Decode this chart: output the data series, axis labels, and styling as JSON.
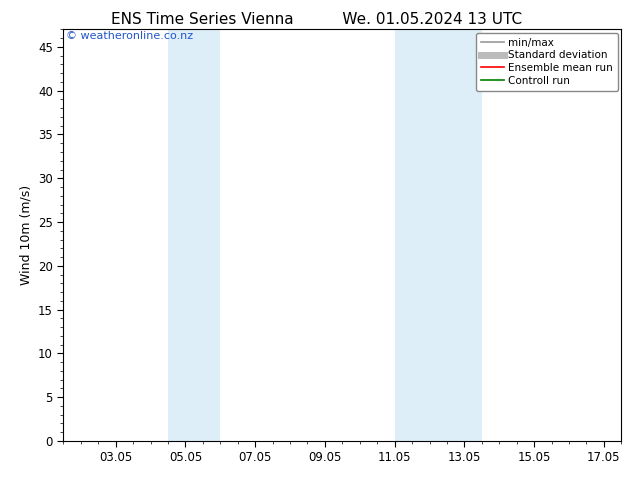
{
  "title_left": "ENS Time Series Vienna",
  "title_right": "We. 01.05.2024 13 UTC",
  "ylabel": "Wind 10m (m/s)",
  "ylim": [
    0,
    47
  ],
  "yticks_major": [
    0,
    5,
    10,
    15,
    20,
    25,
    30,
    35,
    40,
    45
  ],
  "xstart": 1.5,
  "xend": 17.5,
  "xtick_labels": [
    "03.05",
    "05.05",
    "07.05",
    "09.05",
    "11.05",
    "13.05",
    "15.05",
    "17.05"
  ],
  "xtick_positions": [
    3,
    5,
    7,
    9,
    11,
    13,
    15,
    17
  ],
  "shaded_bands": [
    {
      "xmin": 4.5,
      "xmax": 6.0,
      "color": "#ddeef8"
    },
    {
      "xmin": 11.0,
      "xmax": 13.5,
      "color": "#ddeef8"
    }
  ],
  "background_color": "#ffffff",
  "plot_bg_color": "#ffffff",
  "legend_items": [
    {
      "label": "min/max",
      "color": "#999999",
      "lw": 1.2,
      "style": "solid"
    },
    {
      "label": "Standard deviation",
      "color": "#bbbbbb",
      "lw": 5,
      "style": "solid"
    },
    {
      "label": "Ensemble mean run",
      "color": "#ff0000",
      "lw": 1.2,
      "style": "solid"
    },
    {
      "label": "Controll run",
      "color": "#008000",
      "lw": 1.2,
      "style": "solid"
    }
  ],
  "watermark_text": "© weatheronline.co.nz",
  "watermark_color": "#2255cc",
  "font_family": "DejaVu Sans",
  "title_fontsize": 11,
  "tick_fontsize": 8.5,
  "ylabel_fontsize": 9,
  "legend_fontsize": 7.5
}
